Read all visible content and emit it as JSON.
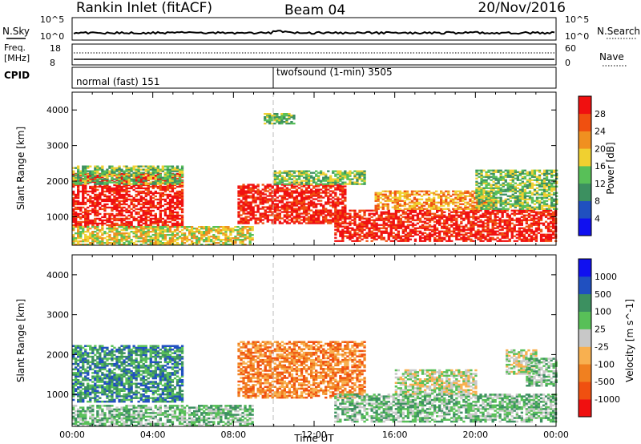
{
  "header": {
    "title": "Rankin Inlet (fitACF)",
    "beam": "Beam 04",
    "date": "20/Nov/2016"
  },
  "noise_panel": {
    "left_label": "N.Sky",
    "right_label": "N.Search",
    "left_ticks": [
      "10^5",
      "10^0"
    ],
    "right_ticks": [
      "10^5",
      "10^0"
    ]
  },
  "freq_panel": {
    "left_label_1": "Freq.",
    "left_label_2": "[MHz]",
    "right_label": "Nave",
    "left_ticks": [
      "18",
      "8"
    ],
    "right_ticks": [
      "60",
      "0"
    ]
  },
  "cpid_panel": {
    "label": "CPID",
    "modes": [
      {
        "name": "normal (fast) 151",
        "start_hour": 0
      },
      {
        "name": "twofsound (1-min) 3505",
        "start_hour": 10
      }
    ]
  },
  "colors": {
    "power": [
      "#1010f0",
      "#2050c0",
      "#3c9060",
      "#58c058",
      "#f0d030",
      "#f09020",
      "#f05010",
      "#f01010"
    ],
    "velocity": [
      "#f01010",
      "#f05010",
      "#f08020",
      "#f8b050",
      "#c8c8c8",
      "#58c058",
      "#3c9060",
      "#2050c0",
      "#1010f0"
    ]
  },
  "chart_data": [
    {
      "type": "heatmap",
      "name": "power",
      "ylabel": "Slant Range [km]",
      "xlabel": "",
      "xlim": [
        0,
        24
      ],
      "ylim": [
        200,
        4500
      ],
      "yticks": [
        "1000",
        "2000",
        "3000",
        "4000"
      ],
      "colorbar_label": "Power [dB]",
      "colorbar_ticks": [
        "4",
        "8",
        "12",
        "16",
        "20",
        "24",
        "28"
      ],
      "regions": [
        {
          "t0": 0.0,
          "t1": 5.5,
          "r0": 700,
          "r1": 2200,
          "level": 7
        },
        {
          "t0": 0.0,
          "t1": 5.5,
          "r0": 1900,
          "r1": 2400,
          "level": 3
        },
        {
          "t0": 0.0,
          "t1": 9.0,
          "r0": 200,
          "r1": 700,
          "level": 4
        },
        {
          "t0": 8.2,
          "t1": 13.5,
          "r0": 800,
          "r1": 1900,
          "level": 7
        },
        {
          "t0": 10.0,
          "t1": 14.5,
          "r0": 1900,
          "r1": 2300,
          "level": 3
        },
        {
          "t0": 13.0,
          "t1": 24.0,
          "r0": 300,
          "r1": 1200,
          "level": 7
        },
        {
          "t0": 15.0,
          "t1": 21.0,
          "r0": 1200,
          "r1": 1700,
          "level": 5
        },
        {
          "t0": 20.0,
          "t1": 24.0,
          "r0": 1200,
          "r1": 2300,
          "level": 3
        },
        {
          "t0": 9.5,
          "t1": 11.0,
          "r0": 3600,
          "r1": 3900,
          "level": 3
        }
      ]
    },
    {
      "type": "heatmap",
      "name": "velocity",
      "ylabel": "Slant Range [km]",
      "xlabel": "Time UT",
      "xlim": [
        0,
        24
      ],
      "ylim": [
        200,
        4500
      ],
      "xticks": [
        "00:00",
        "04:00",
        "08:00",
        "12:00",
        "16:00",
        "20:00",
        "00:00"
      ],
      "yticks": [
        "1000",
        "2000",
        "3000",
        "4000"
      ],
      "colorbar_label": "Velocity [m s^-1]",
      "colorbar_ticks": [
        "1000",
        "500",
        "100",
        "25",
        "-25",
        "-100",
        "-500",
        "-1000"
      ],
      "regions": [
        {
          "t0": 0.0,
          "t1": 5.5,
          "r0": 800,
          "r1": 2200,
          "level": 6
        },
        {
          "t0": 0.0,
          "t1": 9.0,
          "r0": 200,
          "r1": 700,
          "level": 5
        },
        {
          "t0": 8.2,
          "t1": 14.5,
          "r0": 900,
          "r1": 2300,
          "level": 2
        },
        {
          "t0": 13.0,
          "t1": 24.0,
          "r0": 300,
          "r1": 1000,
          "level": 5
        },
        {
          "t0": 16.0,
          "t1": 20.0,
          "r0": 1000,
          "r1": 1600,
          "level": 4
        },
        {
          "t0": 21.5,
          "t1": 23.0,
          "r0": 1500,
          "r1": 2100,
          "level": 4
        },
        {
          "t0": 22.5,
          "t1": 24.0,
          "r0": 1200,
          "r1": 1900,
          "level": 5
        }
      ]
    }
  ]
}
